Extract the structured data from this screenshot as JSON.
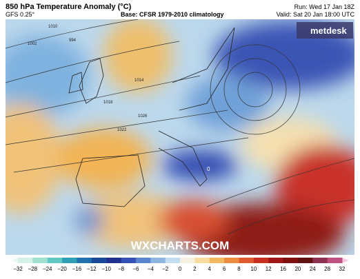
{
  "header": {
    "title": "850 hPa Temperature Anomaly (°C)",
    "model": "GFS 0.25°",
    "base": "Base: CFSR 1979-2010 climatology",
    "run": "Run: Wed 17 Jan 18Z",
    "valid": "Valid: Sat 20 Jan 18:00 UTC"
  },
  "logo": "metdesk",
  "watermark": "WXCHARTS.COM",
  "isobars": [
    "1010",
    "1014",
    "1018",
    "1022",
    "1026",
    "1002",
    "994"
  ],
  "colorbar": {
    "labels": [
      "−32",
      "−28",
      "−24",
      "−20",
      "−16",
      "−12",
      "−10",
      "−8",
      "−6",
      "−4",
      "−2",
      "0",
      "2",
      "4",
      "6",
      "8",
      "10",
      "12",
      "16",
      "20",
      "24",
      "28",
      "32"
    ]
  }
}
